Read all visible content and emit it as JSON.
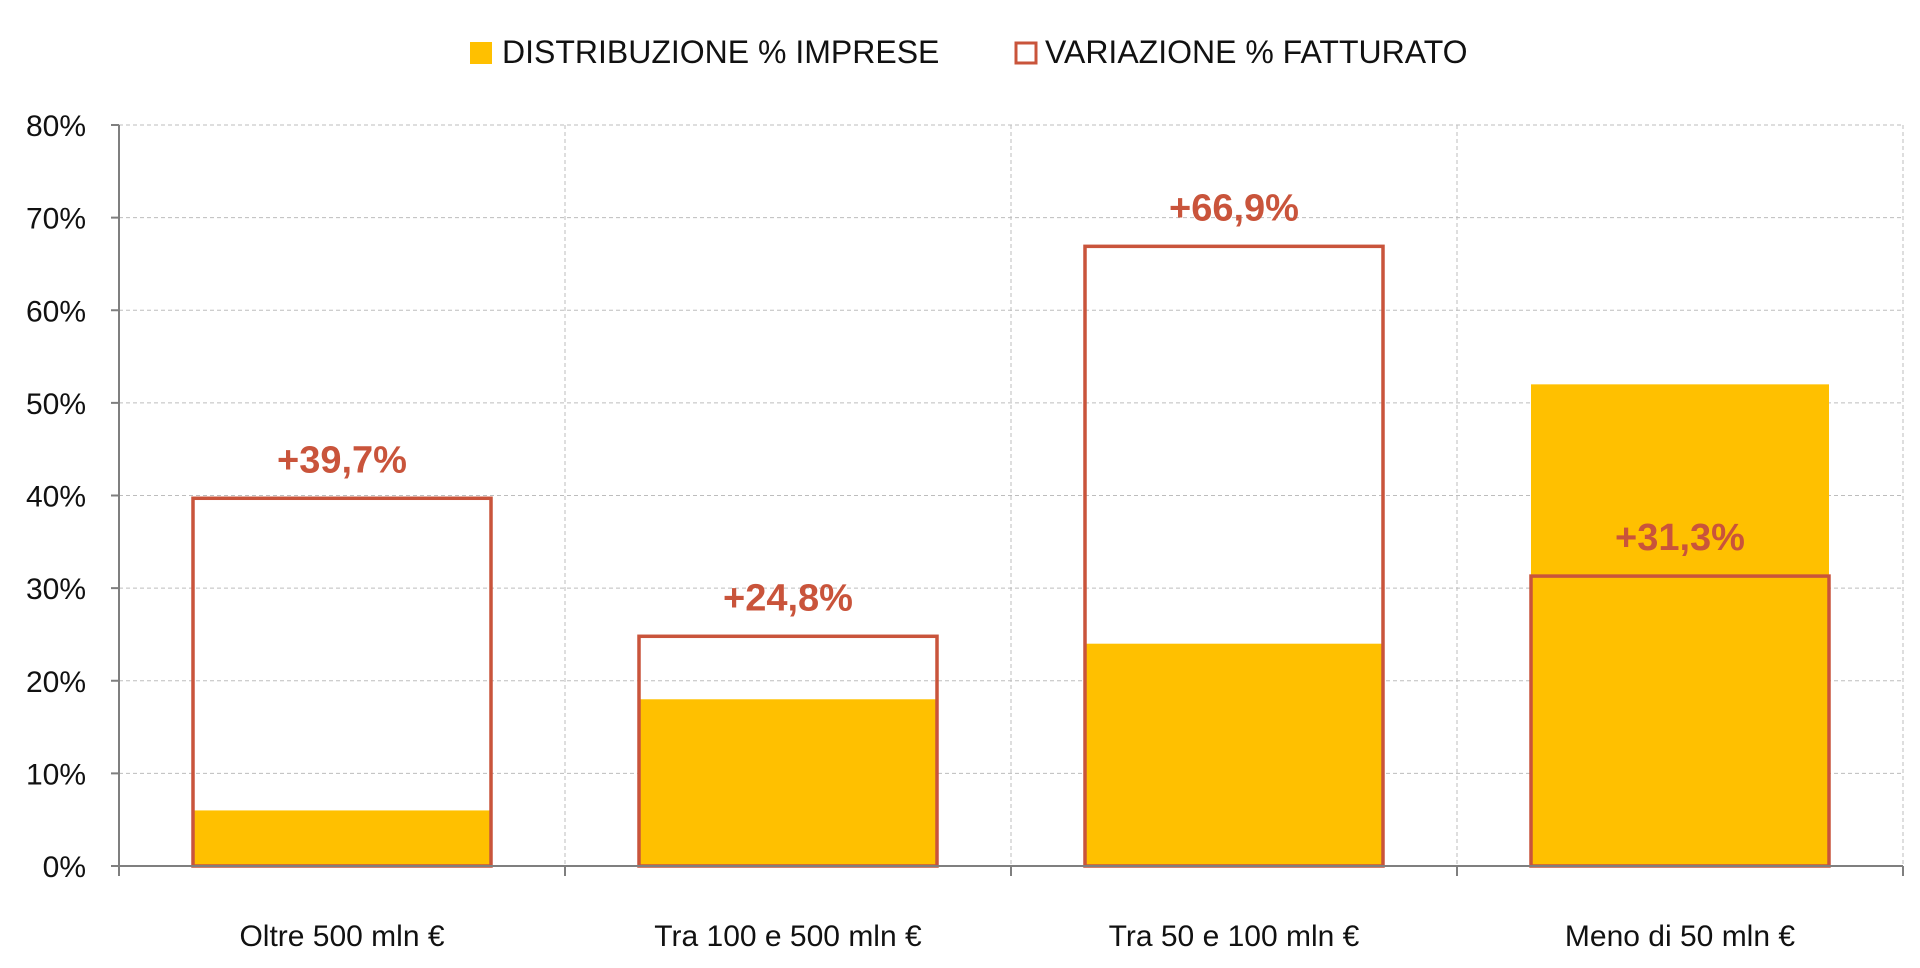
{
  "chart_data": {
    "type": "bar",
    "title": "",
    "xlabel": "",
    "ylabel": "",
    "ylim": [
      0,
      80
    ],
    "yticks": [
      "0%",
      "10%",
      "20%",
      "30%",
      "40%",
      "50%",
      "60%",
      "70%",
      "80%"
    ],
    "grid": true,
    "legend_position": "top",
    "categories": [
      "Oltre 500 mln €",
      "Tra 100 e 500 mln €",
      "Tra 50 e 100 mln €",
      "Meno di 50 mln €"
    ],
    "series": [
      {
        "name": "DISTRIBUZIONE % IMPRESE",
        "style": "filled",
        "color": "#ffc000",
        "values": [
          6,
          18,
          24,
          52
        ]
      },
      {
        "name": "VARIAZIONE % FATTURATO",
        "style": "outline",
        "color": "#c9543b",
        "values": [
          39.7,
          24.8,
          66.9,
          31.3
        ],
        "labels": [
          "+39,7%",
          "+24,8%",
          "+66,9%",
          "+31,3%"
        ]
      }
    ]
  }
}
